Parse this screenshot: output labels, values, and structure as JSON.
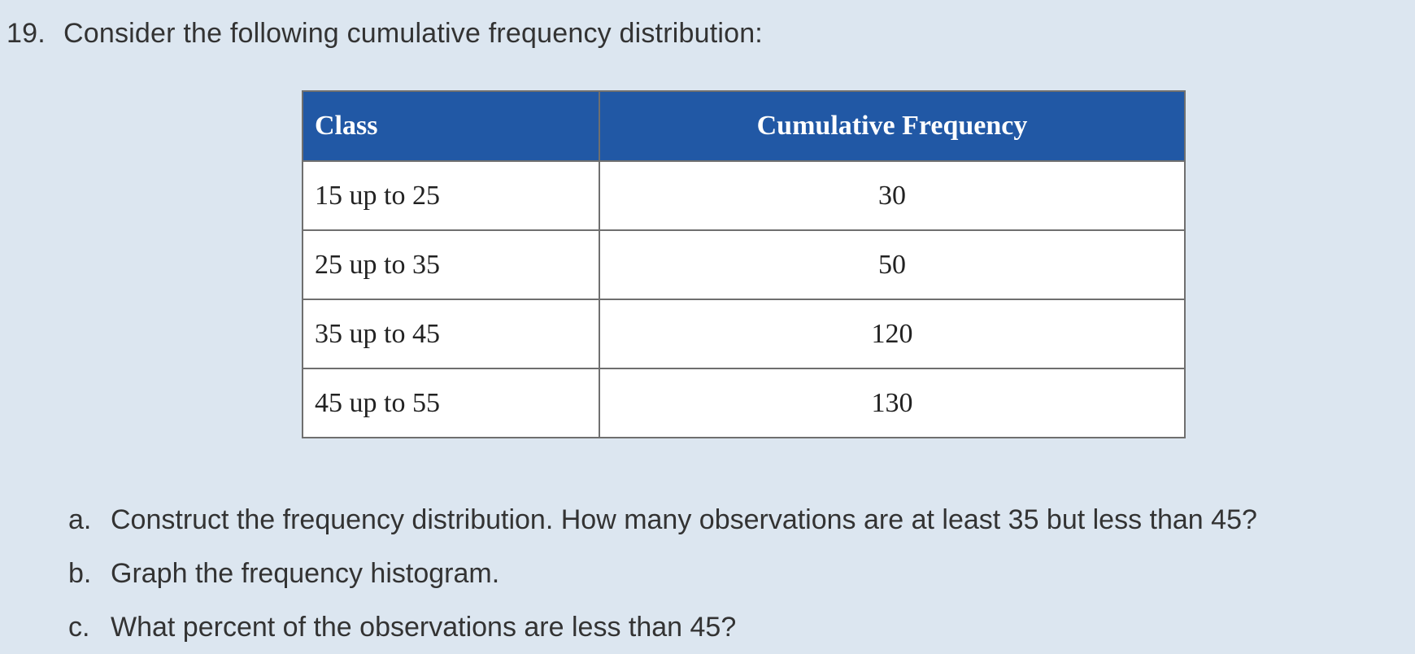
{
  "question": {
    "number": "19.",
    "prompt": "Consider the following cumulative frequency distribution:"
  },
  "table": {
    "header_color": "#2158a5",
    "columns": [
      "Class",
      "Cumulative Frequency"
    ],
    "rows": [
      {
        "class": "15 up to 25",
        "cumulative_frequency": "30"
      },
      {
        "class": "25 up to 35",
        "cumulative_frequency": "50"
      },
      {
        "class": "35 up to 45",
        "cumulative_frequency": "120"
      },
      {
        "class": "45 up to 55",
        "cumulative_frequency": "130"
      }
    ]
  },
  "parts": [
    {
      "letter": "a.",
      "text": "Construct the frequency distribution. How many observations are at least 35 but less than 45?"
    },
    {
      "letter": "b.",
      "text": "Graph the frequency histogram."
    },
    {
      "letter": "c.",
      "text": "What percent of the observations are less than 45?"
    }
  ]
}
